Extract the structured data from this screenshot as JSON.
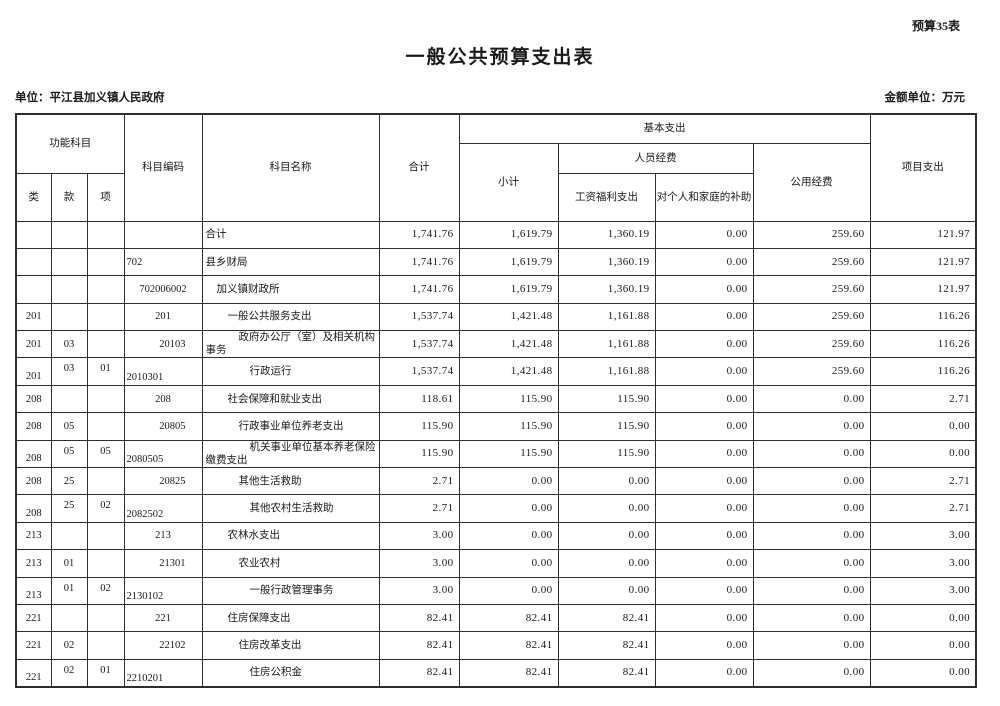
{
  "page": {
    "corner_label": "预算35表",
    "title": "一般公共预算支出表",
    "unit_label": "单位：平江县加义镇人民政府",
    "amount_unit_label": "金额单位：万元"
  },
  "table": {
    "header": {
      "func_category": "功能科目",
      "cls": "类",
      "sec": "款",
      "itm": "项",
      "subject_code": "科目编码",
      "subject_name": "科目名称",
      "total": "合计",
      "basic_expenditure": "基本支出",
      "subtotal": "小计",
      "personnel_funds": "人员经费",
      "wage_welfare": "工资福利支出",
      "individual_family_subsidy": "对个人和家庭的补助",
      "public_funds": "公用经费",
      "project_expenditure": "项目支出"
    },
    "rows": [
      {
        "cls": "",
        "sec": "",
        "itm": "",
        "code": "",
        "code_align": "center",
        "deep": false,
        "indent": 0,
        "name": "合计",
        "values": [
          "1,741.76",
          "1,619.79",
          "1,360.19",
          "0.00",
          "259.60",
          "121.97"
        ]
      },
      {
        "cls": "",
        "sec": "",
        "itm": "",
        "code": "702",
        "code_align": "left",
        "deep": false,
        "indent": 0,
        "name": "县乡财局",
        "values": [
          "1,741.76",
          "1,619.79",
          "1,360.19",
          "0.00",
          "259.60",
          "121.97"
        ]
      },
      {
        "cls": "",
        "sec": "",
        "itm": "",
        "code": "702006002",
        "code_align": "center",
        "deep": false,
        "indent": 1,
        "name": "加义镇财政所",
        "values": [
          "1,741.76",
          "1,619.79",
          "1,360.19",
          "0.00",
          "259.60",
          "121.97"
        ]
      },
      {
        "cls": "201",
        "sec": "",
        "itm": "",
        "code": "201",
        "code_align": "center",
        "deep": false,
        "indent": 2,
        "name": "一般公共服务支出",
        "values": [
          "1,537.74",
          "1,421.48",
          "1,161.88",
          "0.00",
          "259.60",
          "116.26"
        ]
      },
      {
        "cls": "201",
        "sec": "03",
        "itm": "",
        "code": "20103",
        "code_align": "right",
        "deep": false,
        "indent": 3,
        "name": "政府办公厅（室）及相关机构事务",
        "values": [
          "1,537.74",
          "1,421.48",
          "1,161.88",
          "0.00",
          "259.60",
          "116.26"
        ]
      },
      {
        "cls": "201",
        "sec": "03",
        "itm": "01",
        "code": "2010301",
        "code_align": "left",
        "deep": true,
        "indent": 4,
        "name": "行政运行",
        "values": [
          "1,537.74",
          "1,421.48",
          "1,161.88",
          "0.00",
          "259.60",
          "116.26"
        ]
      },
      {
        "cls": "208",
        "sec": "",
        "itm": "",
        "code": "208",
        "code_align": "center",
        "deep": false,
        "indent": 2,
        "name": "社会保障和就业支出",
        "values": [
          "118.61",
          "115.90",
          "115.90",
          "0.00",
          "0.00",
          "2.71"
        ]
      },
      {
        "cls": "208",
        "sec": "05",
        "itm": "",
        "code": "20805",
        "code_align": "right",
        "deep": false,
        "indent": 3,
        "name": "行政事业单位养老支出",
        "values": [
          "115.90",
          "115.90",
          "115.90",
          "0.00",
          "0.00",
          "0.00"
        ]
      },
      {
        "cls": "208",
        "sec": "05",
        "itm": "05",
        "code": "2080505",
        "code_align": "left",
        "deep": true,
        "indent": 4,
        "name": "机关事业单位基本养老保险缴费支出",
        "values": [
          "115.90",
          "115.90",
          "115.90",
          "0.00",
          "0.00",
          "0.00"
        ]
      },
      {
        "cls": "208",
        "sec": "25",
        "itm": "",
        "code": "20825",
        "code_align": "right",
        "deep": false,
        "indent": 3,
        "name": "其他生活救助",
        "values": [
          "2.71",
          "0.00",
          "0.00",
          "0.00",
          "0.00",
          "2.71"
        ]
      },
      {
        "cls": "208",
        "sec": "25",
        "itm": "02",
        "code": "2082502",
        "code_align": "left",
        "deep": true,
        "indent": 4,
        "name": "其他农村生活救助",
        "values": [
          "2.71",
          "0.00",
          "0.00",
          "0.00",
          "0.00",
          "2.71"
        ]
      },
      {
        "cls": "213",
        "sec": "",
        "itm": "",
        "code": "213",
        "code_align": "center",
        "deep": false,
        "indent": 2,
        "name": "农林水支出",
        "values": [
          "3.00",
          "0.00",
          "0.00",
          "0.00",
          "0.00",
          "3.00"
        ]
      },
      {
        "cls": "213",
        "sec": "01",
        "itm": "",
        "code": "21301",
        "code_align": "right",
        "deep": false,
        "indent": 3,
        "name": "农业农村",
        "values": [
          "3.00",
          "0.00",
          "0.00",
          "0.00",
          "0.00",
          "3.00"
        ]
      },
      {
        "cls": "213",
        "sec": "01",
        "itm": "02",
        "code": "2130102",
        "code_align": "left",
        "deep": true,
        "indent": 4,
        "name": "一般行政管理事务",
        "values": [
          "3.00",
          "0.00",
          "0.00",
          "0.00",
          "0.00",
          "3.00"
        ]
      },
      {
        "cls": "221",
        "sec": "",
        "itm": "",
        "code": "221",
        "code_align": "center",
        "deep": false,
        "indent": 2,
        "name": "住房保障支出",
        "values": [
          "82.41",
          "82.41",
          "82.41",
          "0.00",
          "0.00",
          "0.00"
        ]
      },
      {
        "cls": "221",
        "sec": "02",
        "itm": "",
        "code": "22102",
        "code_align": "right",
        "deep": false,
        "indent": 3,
        "name": "住房改革支出",
        "values": [
          "82.41",
          "82.41",
          "82.41",
          "0.00",
          "0.00",
          "0.00"
        ]
      },
      {
        "cls": "221",
        "sec": "02",
        "itm": "01",
        "code": "2210201",
        "code_align": "left",
        "deep": true,
        "indent": 4,
        "name": "住房公积金",
        "values": [
          "82.41",
          "82.41",
          "82.41",
          "0.00",
          "0.00",
          "0.00"
        ]
      }
    ]
  }
}
